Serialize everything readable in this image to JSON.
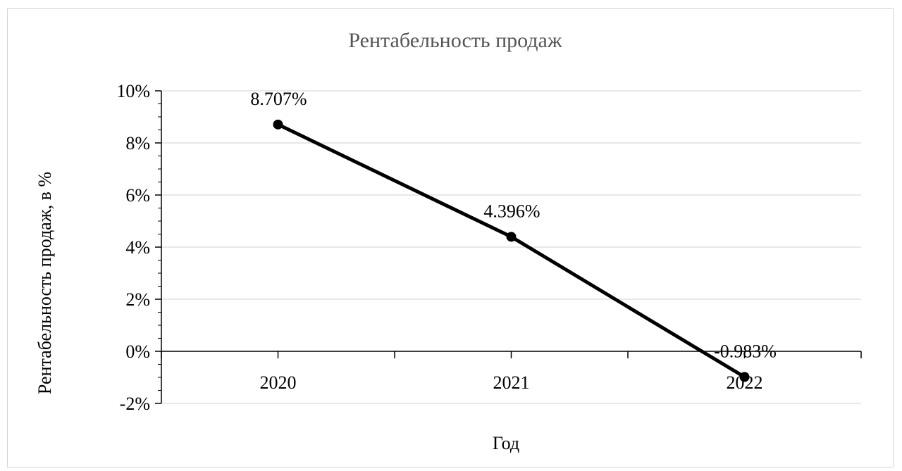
{
  "chart_data": {
    "type": "line",
    "title": "Рентабельность продаж",
    "xlabel": "Год",
    "ylabel": "Рентабельность продаж, в %",
    "categories": [
      "2020",
      "2021",
      "2022"
    ],
    "series": [
      {
        "values": [
          8.707,
          4.396,
          -0.983
        ],
        "labels": [
          "8.707%",
          "4.396%",
          "-0.983%"
        ],
        "color": "#000000"
      }
    ],
    "ylim": [
      -2,
      10
    ],
    "yticks": [
      -2,
      0,
      2,
      4,
      6,
      8,
      10
    ],
    "ytick_labels": [
      "-2%",
      "0%",
      "2%",
      "4%",
      "6%",
      "8%",
      "10%"
    ],
    "grid": true,
    "grid_color": "#d9d9d9",
    "legend": "none"
  }
}
